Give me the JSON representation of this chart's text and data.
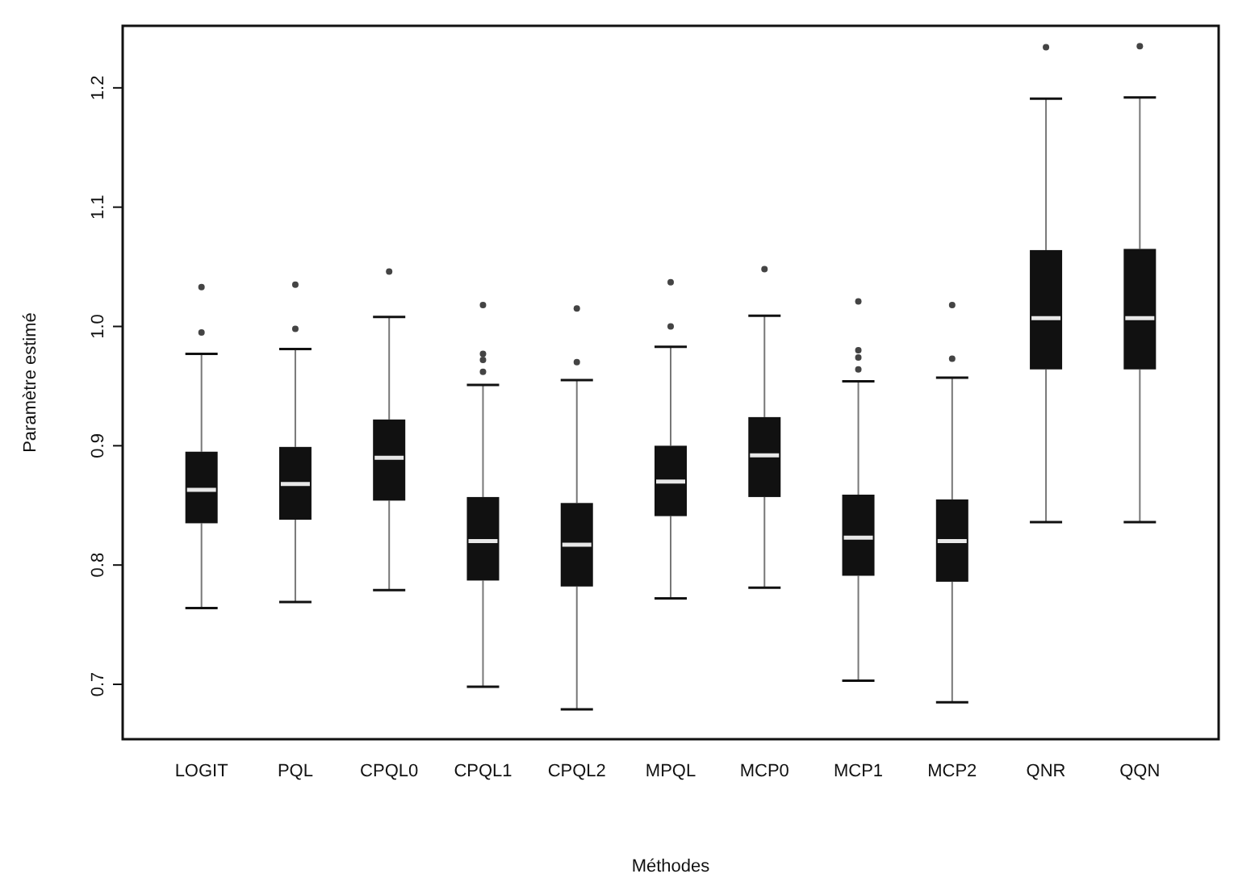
{
  "chart_data": {
    "type": "box",
    "xlabel": "Méthodes",
    "ylabel": "Paramètre estimé",
    "categories": [
      "LOGIT",
      "PQL",
      "CPQL0",
      "CPQL1",
      "CPQL2",
      "MPQL",
      "MCP0",
      "MCP1",
      "MCP2",
      "QNR",
      "QQN"
    ],
    "ylim": [
      0.654,
      1.252
    ],
    "yticks": [
      {
        "value": 0.7,
        "label": "0.7"
      },
      {
        "value": 0.8,
        "label": "0.8"
      },
      {
        "value": 0.9,
        "label": "0.9"
      },
      {
        "value": 1.0,
        "label": "1.0"
      },
      {
        "value": 1.1,
        "label": "1.1"
      },
      {
        "value": 1.2,
        "label": "1.2"
      }
    ],
    "color": "#111111",
    "grid": false,
    "legend": false,
    "boxes": [
      {
        "low": 0.764,
        "q1": 0.835,
        "median": 0.863,
        "q3": 0.895,
        "high": 0.977,
        "outliers": [
          0.995,
          1.033
        ]
      },
      {
        "low": 0.769,
        "q1": 0.838,
        "median": 0.868,
        "q3": 0.899,
        "high": 0.981,
        "outliers": [
          0.998,
          1.035
        ]
      },
      {
        "low": 0.779,
        "q1": 0.854,
        "median": 0.89,
        "q3": 0.922,
        "high": 1.008,
        "outliers": [
          1.046
        ]
      },
      {
        "low": 0.698,
        "q1": 0.787,
        "median": 0.82,
        "q3": 0.857,
        "high": 0.951,
        "outliers": [
          0.962,
          0.972,
          0.977,
          1.018
        ]
      },
      {
        "low": 0.679,
        "q1": 0.782,
        "median": 0.817,
        "q3": 0.852,
        "high": 0.955,
        "outliers": [
          0.97,
          1.015
        ]
      },
      {
        "low": 0.772,
        "q1": 0.841,
        "median": 0.87,
        "q3": 0.9,
        "high": 0.983,
        "outliers": [
          1.0,
          1.037
        ]
      },
      {
        "low": 0.781,
        "q1": 0.857,
        "median": 0.892,
        "q3": 0.924,
        "high": 1.009,
        "outliers": [
          1.048
        ]
      },
      {
        "low": 0.703,
        "q1": 0.791,
        "median": 0.823,
        "q3": 0.859,
        "high": 0.954,
        "outliers": [
          0.964,
          0.974,
          0.98,
          1.021
        ]
      },
      {
        "low": 0.685,
        "q1": 0.786,
        "median": 0.82,
        "q3": 0.855,
        "high": 0.957,
        "outliers": [
          0.973,
          1.018
        ]
      },
      {
        "low": 0.836,
        "q1": 0.964,
        "median": 1.007,
        "q3": 1.064,
        "high": 1.191,
        "outliers": [
          1.234
        ]
      },
      {
        "low": 0.836,
        "q1": 0.964,
        "median": 1.007,
        "q3": 1.065,
        "high": 1.192,
        "outliers": [
          1.235
        ]
      }
    ]
  }
}
